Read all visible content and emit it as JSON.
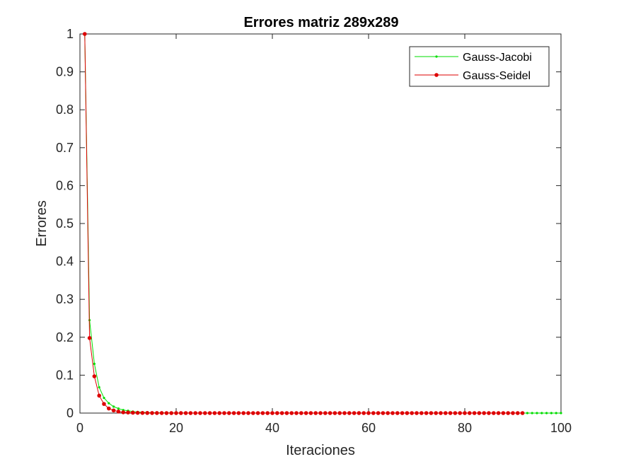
{
  "chart_data": {
    "type": "line",
    "title": "Errores matriz 289x289",
    "xlabel": "Iteraciones",
    "ylabel": "Errores",
    "xlim": [
      0,
      100
    ],
    "ylim": [
      0,
      1
    ],
    "xticks": [
      0,
      20,
      40,
      60,
      80,
      100
    ],
    "yticks": [
      0,
      0.1,
      0.2,
      0.3,
      0.4,
      0.5,
      0.6,
      0.7,
      0.8,
      0.9,
      1
    ],
    "xtick_labels": [
      "0",
      "20",
      "40",
      "60",
      "80",
      "100"
    ],
    "ytick_labels": [
      "0",
      "0.1",
      "0.2",
      "0.3",
      "0.4",
      "0.5",
      "0.6",
      "0.7",
      "0.8",
      "0.9",
      "1"
    ],
    "grid": false,
    "legend_position": "top-right",
    "series": [
      {
        "name": "Gauss-Jacobi",
        "color": "#00dd00",
        "marker": "small-dot",
        "x": [
          1,
          2,
          3,
          4,
          5,
          6,
          7,
          8,
          9,
          10,
          11,
          12,
          13,
          14,
          15,
          16,
          17,
          18,
          19,
          20,
          21,
          22,
          23,
          24,
          25,
          26,
          27,
          28,
          29,
          30,
          31,
          32,
          33,
          34,
          35,
          36,
          37,
          38,
          39,
          40,
          41,
          42,
          43,
          44,
          45,
          46,
          47,
          48,
          49,
          50,
          51,
          52,
          53,
          54,
          55,
          56,
          57,
          58,
          59,
          60,
          61,
          62,
          63,
          64,
          65,
          66,
          67,
          68,
          69,
          70,
          71,
          72,
          73,
          74,
          75,
          76,
          77,
          78,
          79,
          80,
          81,
          82,
          83,
          84,
          85,
          86,
          87,
          88,
          89,
          90,
          91,
          92,
          93,
          94,
          95,
          96,
          97,
          98,
          99,
          100
        ],
        "y": [
          1,
          0.245,
          0.13,
          0.068,
          0.04,
          0.026,
          0.017,
          0.012,
          0.008,
          0.006,
          0.004,
          0.003,
          0.002,
          0.0015,
          0.001,
          0.0008,
          0.0006,
          0.0005,
          0.0004,
          0.0003,
          0.0002,
          0.0002,
          0.0001,
          0.0001,
          0.0001,
          0,
          0,
          0,
          0,
          0,
          0,
          0,
          0,
          0,
          0,
          0,
          0,
          0,
          0,
          0,
          0,
          0,
          0,
          0,
          0,
          0,
          0,
          0,
          0,
          0,
          0,
          0,
          0,
          0,
          0,
          0,
          0,
          0,
          0,
          0,
          0,
          0,
          0,
          0,
          0,
          0,
          0,
          0,
          0,
          0,
          0,
          0,
          0,
          0,
          0,
          0,
          0,
          0,
          0,
          0,
          0,
          0,
          0,
          0,
          0,
          0,
          0,
          0,
          0,
          0,
          0,
          0,
          0,
          0,
          0,
          0,
          0,
          0,
          0,
          0
        ]
      },
      {
        "name": "Gauss-Seidel",
        "color": "#dd0000",
        "marker": "dot",
        "x": [
          1,
          2,
          3,
          4,
          5,
          6,
          7,
          8,
          9,
          10,
          11,
          12,
          13,
          14,
          15,
          16,
          17,
          18,
          19,
          20,
          21,
          22,
          23,
          24,
          25,
          26,
          27,
          28,
          29,
          30,
          31,
          32,
          33,
          34,
          35,
          36,
          37,
          38,
          39,
          40,
          41,
          42,
          43,
          44,
          45,
          46,
          47,
          48,
          49,
          50,
          51,
          52,
          53,
          54,
          55,
          56,
          57,
          58,
          59,
          60,
          61,
          62,
          63,
          64,
          65,
          66,
          67,
          68,
          69,
          70,
          71,
          72,
          73,
          74,
          75,
          76,
          77,
          78,
          79,
          80,
          81,
          82,
          83,
          84,
          85,
          86,
          87,
          88,
          89,
          90,
          91,
          92
        ],
        "y": [
          1,
          0.198,
          0.097,
          0.046,
          0.024,
          0.012,
          0.007,
          0.004,
          0.002,
          0.0015,
          0.001,
          0.0006,
          0.0004,
          0.0003,
          0.0002,
          0.0001,
          0.0001,
          0,
          0,
          0,
          0,
          0,
          0,
          0,
          0,
          0,
          0,
          0,
          0,
          0,
          0,
          0,
          0,
          0,
          0,
          0,
          0,
          0,
          0,
          0,
          0,
          0,
          0,
          0,
          0,
          0,
          0,
          0,
          0,
          0,
          0,
          0,
          0,
          0,
          0,
          0,
          0,
          0,
          0,
          0,
          0,
          0,
          0,
          0,
          0,
          0,
          0,
          0,
          0,
          0,
          0,
          0,
          0,
          0,
          0,
          0,
          0,
          0,
          0,
          0,
          0,
          0,
          0,
          0,
          0,
          0,
          0,
          0,
          0,
          0,
          0,
          0
        ]
      }
    ]
  }
}
